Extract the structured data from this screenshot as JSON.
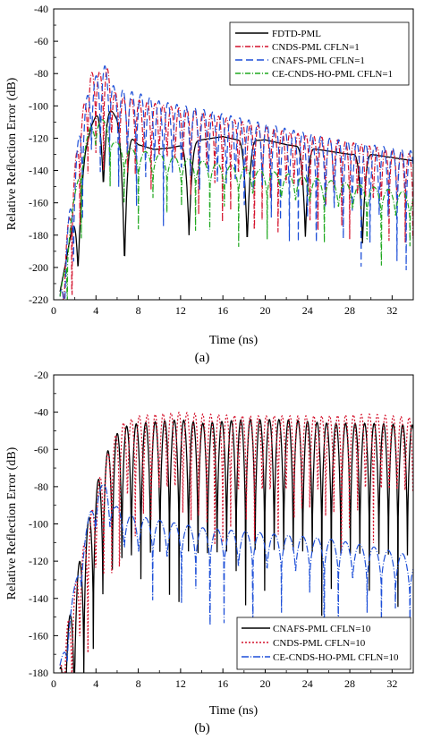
{
  "figure": {
    "label_a": "(a)",
    "label_b": "(b)"
  },
  "chart_data": [
    {
      "type": "line",
      "panel": "a",
      "xlabel": "Time (ns)",
      "ylabel": "Relative Reflection Error (dB)",
      "xlim": [
        0,
        34
      ],
      "ylim": [
        -220,
        -40
      ],
      "xticks": [
        0,
        4,
        8,
        12,
        16,
        20,
        24,
        28,
        32
      ],
      "yticks": [
        -220,
        -200,
        -180,
        -160,
        -140,
        -120,
        -100,
        -80,
        -60,
        -40
      ],
      "legend_position": "top-right",
      "series": [
        {
          "name": "FDTD-PML",
          "color": "#000000",
          "dash": "solid",
          "envelope": {
            "x": [
              0.6,
              1.2,
              2.0,
              3.0,
              3.6,
              4.2,
              5.0,
              5.6,
              6.5,
              8.0,
              9.5,
              11.0,
              12.5,
              14.0,
              16.0,
              18.0,
              20.0,
              22.0,
              24.0,
              26.0,
              28.0,
              30.0,
              32.0,
              34.0
            ],
            "y": [
              -215,
              -195,
              -165,
              -128,
              -112,
              -103,
              -100,
              -104,
              -114,
              -124,
              -127,
              -126,
              -124,
              -121,
              -119,
              -122,
              -121,
              -124,
              -126,
              -128,
              -130,
              -130,
              -132,
              -134
            ]
          },
          "nulls": [
            {
              "x": 2.3,
              "y": -202
            },
            {
              "x": 4.7,
              "y": -150
            },
            {
              "x": 6.7,
              "y": -198
            },
            {
              "x": 12.8,
              "y": -180
            },
            {
              "x": 18.3,
              "y": -185
            },
            {
              "x": 23.8,
              "y": -181
            },
            {
              "x": 29.2,
              "y": -185
            }
          ]
        },
        {
          "name": "CNDS-PML CFLN=1",
          "color": "#d4112b",
          "dash": "6,2,1,2",
          "envelope": {
            "x": [
              0.6,
              1.5,
              2.5,
              3.5,
              4.0,
              4.5,
              5.0,
              5.5,
              6.0,
              7.0,
              10.0,
              14.0,
              18.0,
              22.0,
              26.0,
              30.0,
              34.0
            ],
            "y": [
              -218,
              -165,
              -110,
              -80,
              -77,
              -80,
              -75,
              -86,
              -94,
              -95,
              -99,
              -104,
              -110,
              -116,
              -120,
              -125,
              -130
            ]
          },
          "period": 0.75,
          "depth": 40
        },
        {
          "name": "CNAFS-PML CFLN=1",
          "color": "#1d4fd8",
          "dash": "8,4",
          "envelope": {
            "x": [
              0.6,
              1.5,
              2.5,
              3.5,
              4.2,
              4.8,
              5.2,
              5.8,
              6.5,
              8.0,
              10.0,
              14.0,
              18.0,
              22.0,
              26.0,
              30.0,
              34.0
            ],
            "y": [
              -218,
              -165,
              -112,
              -85,
              -80,
              -75,
              -78,
              -90,
              -90,
              -92,
              -97,
              -102,
              -108,
              -114,
              -120,
              -124,
              -128
            ]
          },
          "period": 0.85,
          "depth": 48
        },
        {
          "name": "CE-CNDS-HO-PML CFLN=1",
          "color": "#1ea81e",
          "dash": "6,2,1,2",
          "envelope": {
            "x": [
              0.6,
              1.5,
              2.5,
              3.5,
              4.2,
              5.0,
              5.8,
              7.0,
              10.0,
              14.0,
              18.0,
              22.0,
              26.0,
              30.0,
              34.0
            ],
            "y": [
              -218,
              -175,
              -135,
              -112,
              -107,
              -110,
              -122,
              -126,
              -130,
              -134,
              -138,
              -142,
              -146,
              -150,
              -154
            ]
          },
          "period": 1.35,
          "depth": 18
        }
      ]
    },
    {
      "type": "line",
      "panel": "b",
      "xlabel": "Time (ns)",
      "ylabel": "Relative Reflection Error (dB)",
      "xlim": [
        0,
        34
      ],
      "ylim": [
        -180,
        -20
      ],
      "xticks": [
        0,
        4,
        8,
        12,
        16,
        20,
        24,
        28,
        32
      ],
      "yticks": [
        -180,
        -160,
        -140,
        -120,
        -100,
        -80,
        -60,
        -40,
        -20
      ],
      "legend_position": "bottom-right",
      "series": [
        {
          "name": "CNAFS-PML CFLN=10",
          "color": "#000000",
          "dash": "solid",
          "envelope": {
            "x": [
              0.6,
              1.5,
              2.5,
              3.5,
              4.5,
              5.5,
              6.5,
              8.0,
              10.0,
              12.0,
              14.0,
              18.0,
              22.0,
              26.0,
              30.0,
              34.0
            ],
            "y": [
              -178,
              -150,
              -118,
              -92,
              -70,
              -55,
              -48,
              -46,
              -45,
              -44,
              -46,
              -44,
              -44,
              -46,
              -46,
              -47
            ]
          },
          "period": 0.9,
          "depth": 70
        },
        {
          "name": "CNDS-PML CFLN=10",
          "color": "#d4112b",
          "dash": "2,2",
          "envelope": {
            "x": [
              0.6,
              1.5,
              2.5,
              3.5,
              4.5,
              5.5,
              6.5,
              8.0,
              10.0,
              12.0,
              14.0,
              18.0,
              22.0,
              26.0,
              30.0,
              34.0
            ],
            "y": [
              -176,
              -148,
              -120,
              -95,
              -72,
              -56,
              -46,
              -42,
              -41,
              -40,
              -41,
              -42,
              -42,
              -42,
              -41,
              -43
            ]
          },
          "period": 0.75,
          "depth": 50
        },
        {
          "name": "CE-CNDS-HO-PML CFLN=10",
          "color": "#1d4fd8",
          "dash": "8,2,1,2",
          "envelope": {
            "x": [
              0.6,
              1.5,
              2.5,
              3.5,
              4.2,
              5.0,
              5.8,
              7.0,
              10.0,
              14.0,
              18.0,
              22.0,
              26.0,
              30.0,
              33.0,
              34.0
            ],
            "y": [
              -176,
              -148,
              -118,
              -92,
              -80,
              -78,
              -90,
              -95,
              -98,
              -102,
              -104,
              -106,
              -108,
              -112,
              -116,
              -120
            ]
          },
          "period": 1.35,
          "depth": 22
        }
      ]
    }
  ]
}
